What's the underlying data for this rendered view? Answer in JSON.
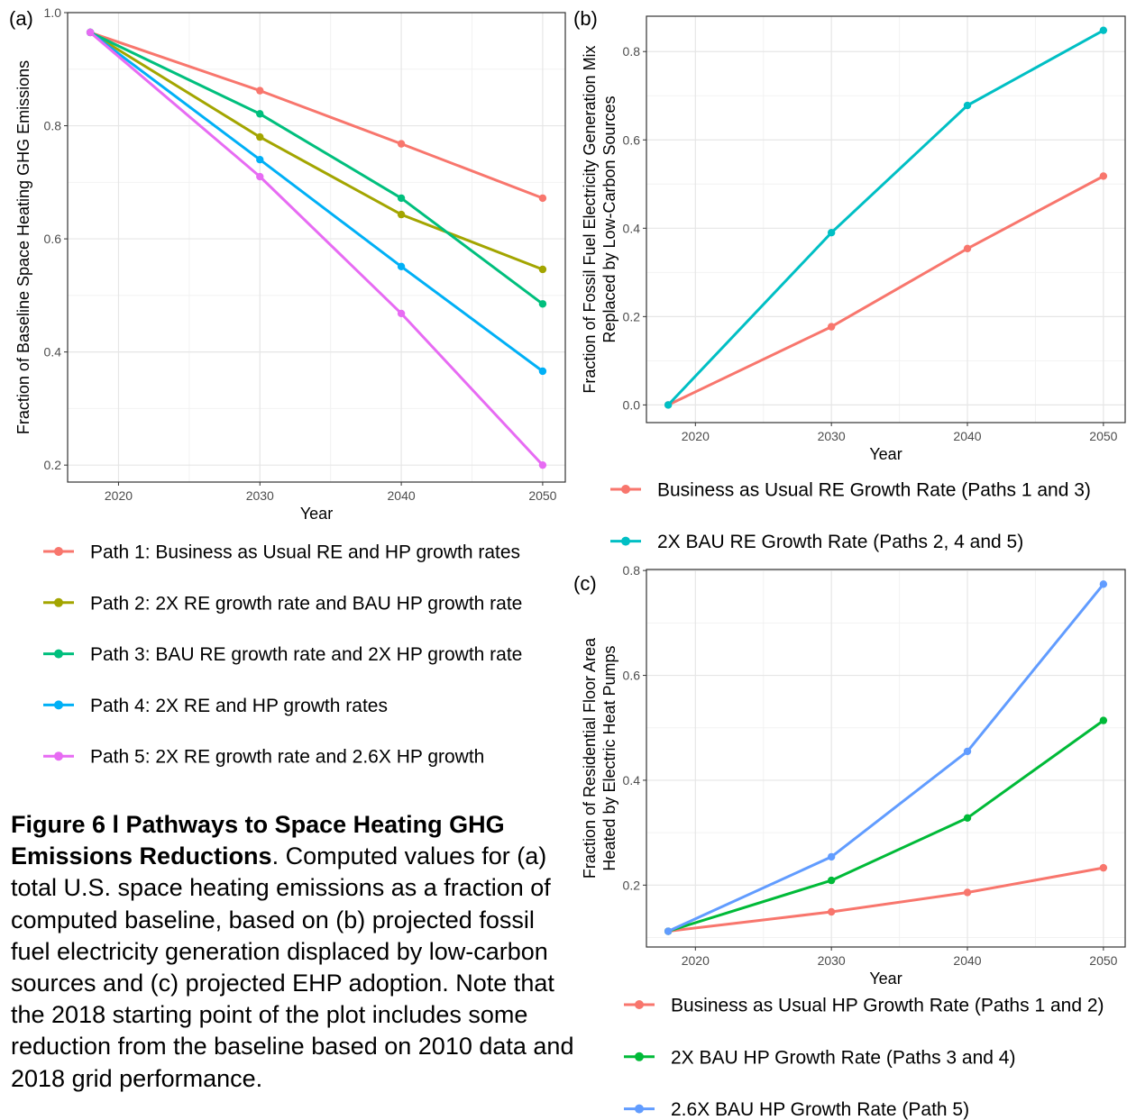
{
  "chart_data": [
    {
      "panel": "(a)",
      "type": "line",
      "xlabel": "Year",
      "ylabel": "Fraction of Baseline Space Heating GHG Emissions",
      "xlim": [
        2016.4,
        2051.6
      ],
      "ylim": [
        0.17,
        1.0
      ],
      "xticks": [
        2020,
        2030,
        2040,
        2050
      ],
      "yticks": [
        0.2,
        0.4,
        0.6,
        0.8,
        1.0
      ],
      "ytick_labels": [
        "0.2",
        "0.4",
        "0.6",
        "0.8",
        "1.0"
      ],
      "x": [
        2018,
        2030,
        2040,
        2050
      ],
      "series": [
        {
          "name": "Path 1: Business as Usual RE and HP growth rates",
          "color": "#F8766D",
          "values": [
            0.965,
            0.862,
            0.768,
            0.672
          ]
        },
        {
          "name": "Path 2: 2X RE growth rate and BAU HP growth rate",
          "color": "#A3A500",
          "values": [
            0.965,
            0.78,
            0.643,
            0.546
          ]
        },
        {
          "name": "Path 3: BAU RE growth rate and 2X HP growth rate",
          "color": "#00BF7D",
          "values": [
            0.965,
            0.821,
            0.672,
            0.485
          ]
        },
        {
          "name": "Path 4: 2X RE and HP growth rates",
          "color": "#00B0F6",
          "values": [
            0.965,
            0.74,
            0.551,
            0.366
          ]
        },
        {
          "name": "Path 5: 2X RE growth rate and 2.6X HP growth",
          "color": "#E76BF3",
          "values": [
            0.965,
            0.71,
            0.468,
            0.2
          ]
        }
      ],
      "grid": true,
      "legend_position": "bottom"
    },
    {
      "panel": "(b)",
      "type": "line",
      "xlabel": "Year",
      "ylabel": [
        "Fraction of Fossil Fuel Electricity Generation Mix",
        "Replaced by Low-Carbon Sources"
      ],
      "xlim": [
        2016.4,
        2051.6
      ],
      "ylim": [
        -0.04,
        0.88
      ],
      "xticks": [
        2020,
        2030,
        2040,
        2050
      ],
      "yticks": [
        0.0,
        0.2,
        0.4,
        0.6,
        0.8
      ],
      "ytick_labels": [
        "0.0",
        "0.2",
        "0.4",
        "0.6",
        "0.8"
      ],
      "x": [
        2018,
        2030,
        2040,
        2050
      ],
      "series": [
        {
          "name": "Business as Usual RE Growth Rate (Paths 1 and 3)",
          "color": "#F8766D",
          "values": [
            0.0,
            0.177,
            0.354,
            0.518
          ]
        },
        {
          "name": "2X BAU RE Growth Rate (Paths 2, 4 and 5)",
          "color": "#00BFC4",
          "values": [
            0.0,
            0.39,
            0.678,
            0.848
          ]
        }
      ],
      "grid": true,
      "legend_position": "bottom"
    },
    {
      "panel": "(c)",
      "type": "line",
      "xlabel": "Year",
      "ylabel": [
        "Fraction of Residential Floor Area",
        "Heated by Electric Heat Pumps"
      ],
      "xlim": [
        2016.4,
        2051.6
      ],
      "ylim": [
        0.082,
        0.802
      ],
      "xticks": [
        2020,
        2030,
        2040,
        2050
      ],
      "yticks": [
        0.2,
        0.4,
        0.6,
        0.8
      ],
      "ytick_labels": [
        "0.2",
        "0.4",
        "0.6",
        "0.8"
      ],
      "x": [
        2018,
        2030,
        2040,
        2050
      ],
      "series": [
        {
          "name": "Business as Usual HP Growth Rate (Paths 1 and 2)",
          "color": "#F8766D",
          "values": [
            0.112,
            0.149,
            0.186,
            0.233
          ]
        },
        {
          "name": "2X BAU HP Growth Rate (Paths 3 and 4)",
          "color": "#00BA38",
          "values": [
            0.112,
            0.209,
            0.328,
            0.514
          ]
        },
        {
          "name": "2.6X BAU HP Growth Rate (Path 5)",
          "color": "#619CFF",
          "values": [
            0.112,
            0.254,
            0.455,
            0.774
          ]
        }
      ],
      "grid": true,
      "legend_position": "bottom"
    }
  ],
  "caption": {
    "title": "Figure 6 l Pathways to Space Heating GHG Emissions Reductions",
    "body": ". Computed values for (a) total U.S. space heating emissions as a fraction of computed baseline, based on (b) projected fossil fuel electricity generation displaced by low-carbon sources and (c) projected EHP adoption. Note that the 2018 starting point of the plot includes some reduction from the baseline based on 2010 data and 2018 grid performance."
  }
}
